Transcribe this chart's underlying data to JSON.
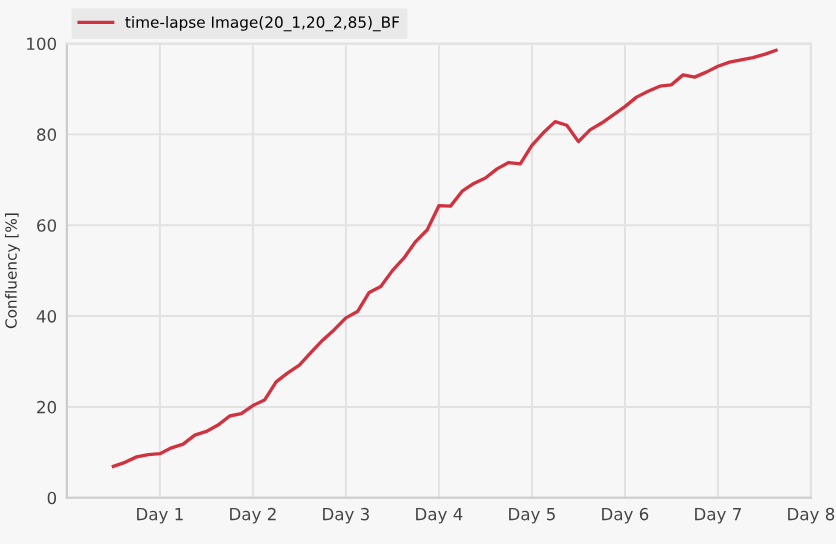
{
  "chart_data": {
    "type": "line",
    "ylabel": "Confluency [%]",
    "categories": [
      null,
      null,
      null,
      null,
      null,
      "Day 1",
      null,
      null,
      null,
      null,
      null,
      null,
      null,
      "Day 2",
      null,
      null,
      null,
      null,
      null,
      null,
      null,
      "Day 3",
      null,
      null,
      null,
      null,
      null,
      null,
      null,
      "Day 4",
      null,
      null,
      null,
      null,
      null,
      null,
      null,
      "Day 5",
      null,
      null,
      null,
      null,
      null,
      null,
      null,
      "Day 6",
      null,
      null,
      null,
      null,
      null,
      null,
      null,
      "Day 7",
      null,
      null,
      null,
      null,
      null,
      null,
      null,
      "Day 8"
    ],
    "series": [
      {
        "name": "time-lapse Image(20_1,20_2,85)_BF",
        "color": "#d0333f",
        "values": [
          null,
          6.9,
          7.8,
          9.0,
          9.5,
          9.7,
          11.0,
          11.8,
          13.8,
          14.6,
          16.0,
          18.0,
          18.5,
          20.3,
          21.5,
          25.5,
          27.5,
          29.2,
          32.0,
          34.7,
          37.0,
          39.6,
          41.0,
          45.2,
          46.5,
          50.0,
          52.8,
          56.4,
          59.0,
          64.3,
          64.2,
          67.5,
          69.2,
          70.4,
          72.4,
          73.8,
          73.5,
          77.6,
          80.4,
          82.8,
          82.0,
          78.4,
          81.0,
          82.5,
          84.3,
          86.1,
          88.2,
          89.5,
          90.6,
          90.9,
          93.1,
          92.6,
          93.7,
          95.0,
          95.9,
          96.4,
          96.9,
          97.6,
          98.5,
          null,
          null,
          null
        ]
      }
    ],
    "ylim": [
      0,
      100
    ],
    "yticks": [
      0,
      20,
      40,
      60,
      80,
      100
    ],
    "grid": true,
    "legend": "top left",
    "line_style": "solid",
    "marker": "none"
  }
}
